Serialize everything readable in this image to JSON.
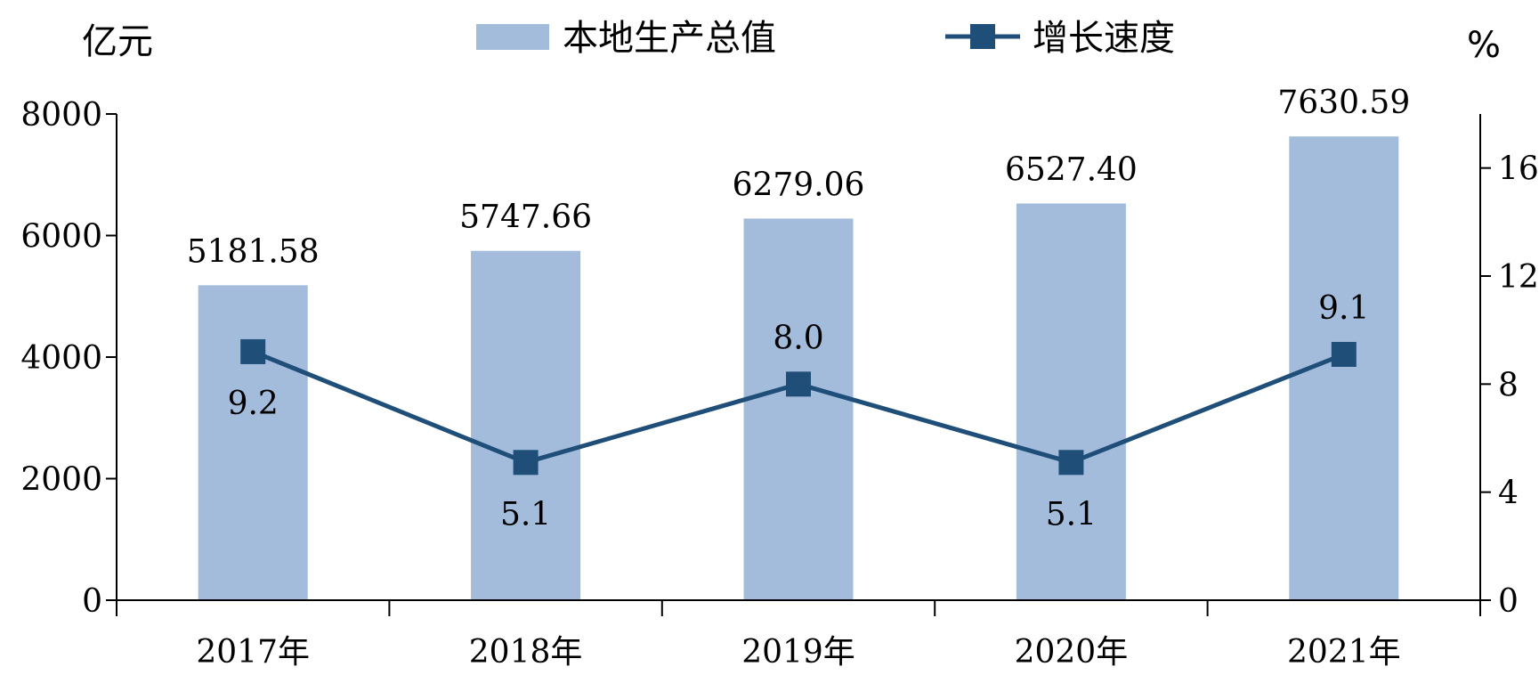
{
  "chart_data": {
    "type": "bar",
    "categories": [
      "2017年",
      "2018年",
      "2019年",
      "2020年",
      "2021年"
    ],
    "series": [
      {
        "name": "本地生产总值",
        "type": "bar",
        "axis": "left",
        "color": "#a3bcdc",
        "values": [
          5181.58,
          5747.66,
          6279.06,
          6527.4,
          7630.59
        ],
        "labels": [
          "5181.58",
          "5747.66",
          "6279.06",
          "6527.40",
          "7630.59"
        ]
      },
      {
        "name": "增长速度",
        "type": "line",
        "axis": "right",
        "color": "#1f4e79",
        "values": [
          9.2,
          5.1,
          8.0,
          5.1,
          9.1
        ],
        "labels": [
          "9.2",
          "5.1",
          "8.0",
          "5.1",
          "9.1"
        ]
      }
    ],
    "left_axis": {
      "unit": "亿元",
      "ylim": [
        0,
        8000
      ],
      "ticks": [
        0,
        2000,
        4000,
        6000,
        8000
      ]
    },
    "right_axis": {
      "unit": "%",
      "ylim": [
        0,
        18
      ],
      "ticks": [
        0,
        4,
        8,
        12,
        16
      ]
    },
    "grid": false,
    "legend_position": "top-center"
  }
}
